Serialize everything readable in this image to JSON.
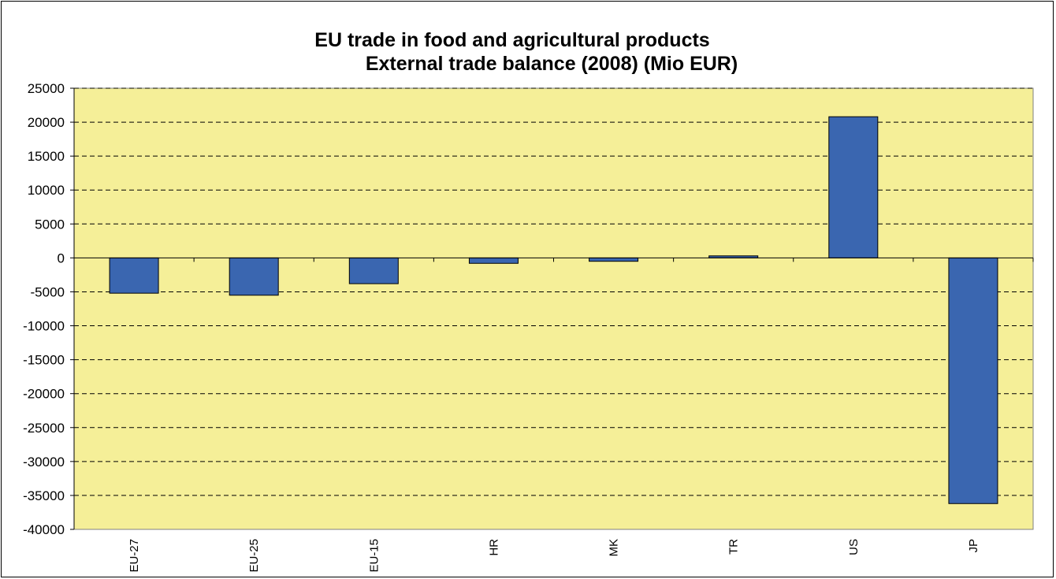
{
  "chart_data": {
    "type": "bar",
    "title": "EU trade in food and agricultural products",
    "subtitle": "External trade balance (2008) (Mio EUR)",
    "categories": [
      "EU-27",
      "EU-25",
      "EU-15",
      "HR",
      "MK",
      "TR",
      "US",
      "JP"
    ],
    "series": [
      {
        "values": [
          -5200,
          -5500,
          -3800,
          -800,
          -500,
          300,
          20800,
          -36200
        ]
      }
    ],
    "ylim": [
      -40000,
      25000
    ],
    "yticks": [
      25000,
      20000,
      15000,
      10000,
      5000,
      0,
      -5000,
      -10000,
      -15000,
      -20000,
      -25000,
      -30000,
      -35000,
      -40000
    ],
    "xlabel": "",
    "ylabel": "",
    "grid": true,
    "colors": {
      "plot_bg": "#F5EF98",
      "bar": "#3A66B0",
      "grid": "#000000"
    }
  }
}
